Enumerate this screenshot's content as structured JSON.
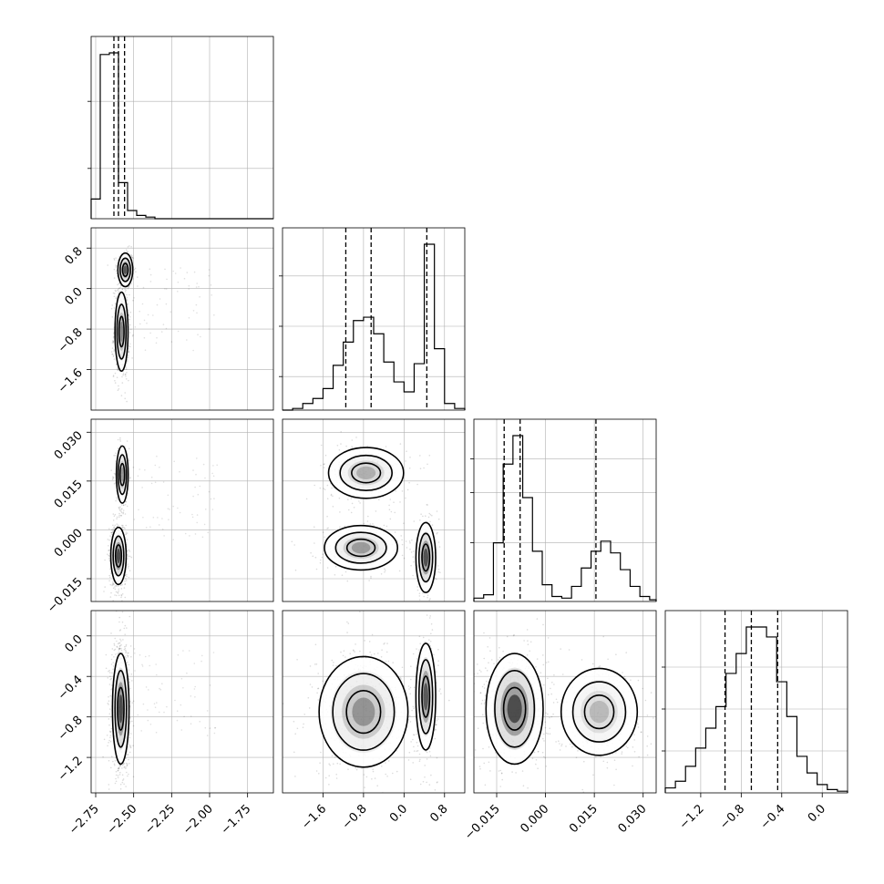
{
  "chart_data": {
    "type": "corner",
    "parameters": [
      {
        "id": "p1",
        "range": [
          -2.78,
          -1.58
        ],
        "ticks": [
          -2.75,
          -2.5,
          -2.25,
          -2.0,
          -1.75
        ],
        "tick_labels": [
          "−2.75",
          "−2.50",
          "−2.25",
          "−2.00",
          "−1.75"
        ],
        "quantiles": [
          -2.63,
          -2.6,
          -2.56
        ]
      },
      {
        "id": "p2",
        "range": [
          -2.4,
          1.2
        ],
        "ticks": [
          -1.6,
          -0.8,
          0.0,
          0.8
        ],
        "tick_labels": [
          "−1.6",
          "−0.8",
          "0.0",
          "0.8"
        ],
        "quantiles": [
          -1.15,
          -0.65,
          0.45
        ]
      },
      {
        "id": "p3",
        "range": [
          -0.022,
          0.034
        ],
        "ticks": [
          -0.015,
          0.0,
          0.015,
          0.03
        ],
        "tick_labels": [
          "−0.015",
          "0.000",
          "0.015",
          "0.030"
        ],
        "quantiles": [
          -0.0127,
          -0.0078,
          0.0155
        ]
      },
      {
        "id": "p4",
        "range": [
          -1.55,
          0.25
        ],
        "ticks": [
          -1.2,
          -0.8,
          -0.4,
          0.0
        ],
        "tick_labels": [
          "−1.2",
          "−0.8",
          "−0.4",
          "0.0"
        ],
        "quantiles": [
          -0.96,
          -0.7,
          -0.44
        ]
      }
    ],
    "histograms": [
      {
        "param": "p1",
        "edges": [
          -2.78,
          -2.72,
          -2.66,
          -2.6,
          -2.54,
          -2.48,
          -2.42,
          -2.36,
          -2.3,
          -2.24,
          -1.58
        ],
        "counts": [
          0.12,
          1.0,
          1.01,
          0.22,
          0.05,
          0.02,
          0.01,
          0.0,
          0.0,
          0.0
        ],
        "y_ticks": [
          0.3,
          0.7
        ]
      },
      {
        "param": "p2",
        "edges": [
          -2.4,
          -2.2,
          -2.0,
          -1.8,
          -1.6,
          -1.4,
          -1.2,
          -1.0,
          -0.8,
          -0.6,
          -0.4,
          -0.2,
          0.0,
          0.2,
          0.4,
          0.6,
          0.8,
          1.0,
          1.2
        ],
        "counts": [
          0.0,
          0.01,
          0.04,
          0.07,
          0.13,
          0.27,
          0.41,
          0.54,
          0.56,
          0.46,
          0.29,
          0.17,
          0.11,
          0.28,
          1.0,
          0.37,
          0.04,
          0.01
        ],
        "y_ticks": [
          0.2,
          0.5,
          0.8
        ]
      },
      {
        "param": "p3",
        "edges": [
          -0.022,
          -0.019,
          -0.016,
          -0.013,
          -0.01,
          -0.007,
          -0.004,
          -0.001,
          0.002,
          0.005,
          0.008,
          0.011,
          0.014,
          0.017,
          0.02,
          0.023,
          0.026,
          0.029,
          0.032,
          0.034
        ],
        "counts": [
          0.02,
          0.04,
          0.35,
          0.82,
          0.99,
          0.62,
          0.3,
          0.1,
          0.03,
          0.02,
          0.09,
          0.2,
          0.3,
          0.36,
          0.29,
          0.19,
          0.09,
          0.03,
          0.01
        ],
        "y_ticks": [
          0.35,
          0.65,
          0.85
        ]
      },
      {
        "param": "p4",
        "edges": [
          -1.55,
          -1.45,
          -1.35,
          -1.25,
          -1.15,
          -1.05,
          -0.95,
          -0.85,
          -0.75,
          -0.65,
          -0.55,
          -0.45,
          -0.35,
          -0.25,
          -0.15,
          -0.05,
          0.05,
          0.15,
          0.25
        ],
        "counts": [
          0.03,
          0.07,
          0.16,
          0.27,
          0.39,
          0.52,
          0.72,
          0.84,
          1.0,
          1.0,
          0.94,
          0.67,
          0.46,
          0.22,
          0.12,
          0.05,
          0.02,
          0.01
        ],
        "y_ticks": [
          0.25,
          0.5,
          0.75
        ]
      }
    ],
    "pair_modes": [
      {
        "x": "p1",
        "y": "p2",
        "modes": [
          {
            "cx": -2.555,
            "cy": 0.37,
            "sx": 0.025,
            "sy": 0.17,
            "w": 0.35,
            "peak": 0.85
          },
          {
            "cx": -2.58,
            "cy": -0.85,
            "sx": 0.022,
            "sy": 0.4,
            "w": 0.65,
            "peak": 0.55
          }
        ]
      },
      {
        "x": "p1",
        "y": "p3",
        "modes": [
          {
            "cx": -2.575,
            "cy": 0.017,
            "sx": 0.02,
            "sy": 0.0045,
            "w": 0.35,
            "peak": 0.45
          },
          {
            "cx": -2.6,
            "cy": -0.008,
            "sx": 0.026,
            "sy": 0.0045,
            "w": 0.65,
            "peak": 0.95
          }
        ]
      },
      {
        "x": "p2",
        "y": "p3",
        "modes": [
          {
            "cx": -0.75,
            "cy": 0.0175,
            "sx": 0.38,
            "sy": 0.004,
            "w": 0.35,
            "peak": 0.35
          },
          {
            "cx": -0.85,
            "cy": -0.0055,
            "sx": 0.37,
            "sy": 0.0035,
            "w": 0.35,
            "peak": 0.45
          },
          {
            "cx": 0.43,
            "cy": -0.0085,
            "sx": 0.1,
            "sy": 0.0055,
            "w": 0.3,
            "peak": 0.9
          }
        ]
      },
      {
        "x": "p1",
        "y": "p4",
        "modes": [
          {
            "cx": -2.585,
            "cy": -0.72,
            "sx": 0.028,
            "sy": 0.28,
            "w": 1.0,
            "peak": 0.95
          }
        ]
      },
      {
        "x": "p2",
        "y": "p4",
        "modes": [
          {
            "cx": -0.8,
            "cy": -0.75,
            "sx": 0.45,
            "sy": 0.28,
            "w": 0.65,
            "peak": 0.5
          },
          {
            "cx": 0.43,
            "cy": -0.6,
            "sx": 0.1,
            "sy": 0.27,
            "w": 0.35,
            "peak": 0.85
          }
        ]
      },
      {
        "x": "p3",
        "y": "p4",
        "modes": [
          {
            "cx": -0.0095,
            "cy": -0.72,
            "sx": 0.0045,
            "sy": 0.28,
            "w": 0.65,
            "peak": 0.95
          },
          {
            "cx": 0.0165,
            "cy": -0.75,
            "sx": 0.006,
            "sy": 0.22,
            "w": 0.35,
            "peak": 0.3
          }
        ]
      }
    ],
    "contour_levels": [
      0.2,
      0.5,
      0.8
    ],
    "grid": true,
    "legend": "none"
  },
  "colors": {
    "ink": "#000000",
    "grid": "#b0b0b0",
    "points": "#000000",
    "background": "#ffffff"
  }
}
